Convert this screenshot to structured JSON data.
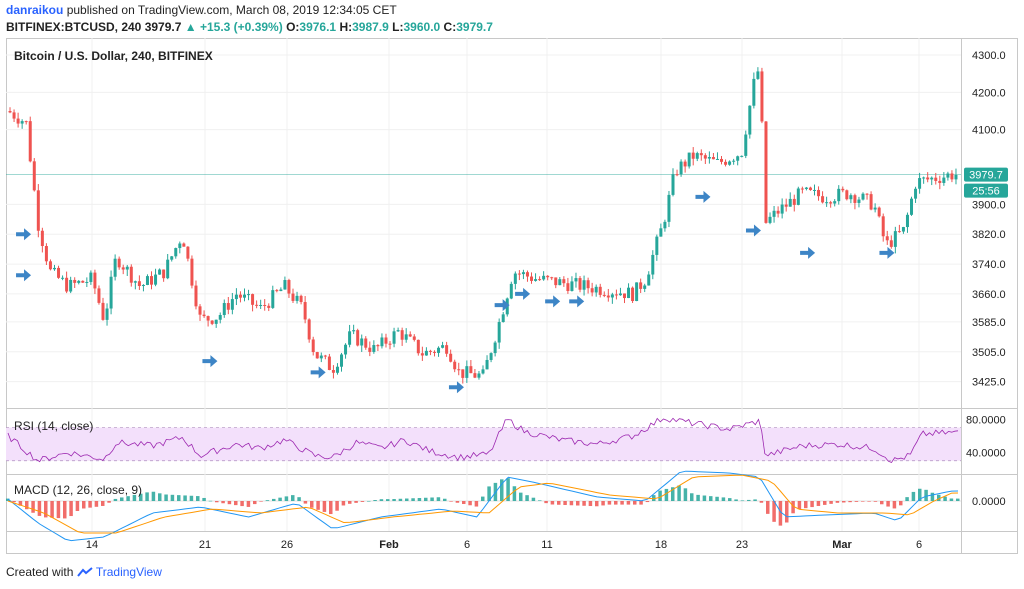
{
  "header": {
    "author": "danraikou",
    "published": "published on TradingView.com, March 08, 2019 12:34:05 CET",
    "symbol": "BITFINEX:BTCUSD, 240",
    "last": "3979.7",
    "change": "+15.3 (+0.39%)",
    "o_label": "O:",
    "o": "3976.1",
    "h_label": "H:",
    "h": "3987.9",
    "l_label": "L:",
    "l": "3960.0",
    "c_label": "C:",
    "c": "3979.7"
  },
  "panes": {
    "main_title": "Bitcoin / U.S. Dollar, 240, BITFINEX",
    "rsi_title": "RSI (14, close)",
    "macd_title": "MACD (12, 26, close, 9)"
  },
  "price_tag": "3979.7",
  "countdown": "25:56",
  "footer": {
    "created": "Created with",
    "brand": "TradingView"
  },
  "colors": {
    "up": "#26a69a",
    "down": "#ef5350",
    "arrow": "#3d85c6",
    "rsi": "#9c27b0",
    "rsi_band": "#f3e0fb",
    "macd": "#2196f3",
    "signal": "#ff9800",
    "last_line": "#26a69a"
  },
  "chart_data": [
    {
      "type": "candlestick",
      "title": "Bitcoin / U.S. Dollar, 240, BITFINEX",
      "y_ticks": [
        4300.0,
        4200.0,
        4100.0,
        3900.0,
        3820.0,
        3740.0,
        3660.0,
        3585.0,
        3505.0,
        3425.0
      ],
      "x_ticks": [
        "14",
        "21",
        "26",
        "Feb",
        "6",
        "11",
        "18",
        "23",
        "Mar",
        "6"
      ],
      "last_price": 3979.7,
      "price_path": [
        {
          "t": 0,
          "p": 4150
        },
        {
          "t": 1.5,
          "p": 4120
        },
        {
          "t": 2.5,
          "p": 3850
        },
        {
          "t": 3.5,
          "p": 3720
        },
        {
          "t": 5.0,
          "p": 3680
        },
        {
          "t": 7.0,
          "p": 3700
        },
        {
          "t": 8.0,
          "p": 3590
        },
        {
          "t": 9.0,
          "p": 3760
        },
        {
          "t": 11.0,
          "p": 3680
        },
        {
          "t": 13.0,
          "p": 3720
        },
        {
          "t": 14.5,
          "p": 3820
        },
        {
          "t": 16.0,
          "p": 3590
        },
        {
          "t": 17.5,
          "p": 3600
        },
        {
          "t": 19.0,
          "p": 3660
        },
        {
          "t": 21.0,
          "p": 3620
        },
        {
          "t": 23.0,
          "p": 3680
        },
        {
          "t": 24.5,
          "p": 3620
        },
        {
          "t": 25.5,
          "p": 3500
        },
        {
          "t": 27.0,
          "p": 3460
        },
        {
          "t": 28.5,
          "p": 3550
        },
        {
          "t": 30.5,
          "p": 3510
        },
        {
          "t": 32.5,
          "p": 3560
        },
        {
          "t": 34.5,
          "p": 3500
        },
        {
          "t": 36.5,
          "p": 3520
        },
        {
          "t": 37.5,
          "p": 3450
        },
        {
          "t": 39.5,
          "p": 3440
        },
        {
          "t": 41.0,
          "p": 3600
        },
        {
          "t": 42.0,
          "p": 3720
        },
        {
          "t": 44.0,
          "p": 3700
        },
        {
          "t": 46.0,
          "p": 3690
        },
        {
          "t": 48.0,
          "p": 3680
        },
        {
          "t": 50.0,
          "p": 3670
        },
        {
          "t": 52.0,
          "p": 3660
        },
        {
          "t": 53.0,
          "p": 3700
        },
        {
          "t": 54.5,
          "p": 3850
        },
        {
          "t": 55.5,
          "p": 3990
        },
        {
          "t": 57.0,
          "p": 4030
        },
        {
          "t": 59.0,
          "p": 4010
        },
        {
          "t": 61.0,
          "p": 4040
        },
        {
          "t": 62.0,
          "p": 4220
        },
        {
          "t": 62.5,
          "p": 4270
        },
        {
          "t": 63.0,
          "p": 3850
        },
        {
          "t": 64.0,
          "p": 3880
        },
        {
          "t": 66.0,
          "p": 3930
        },
        {
          "t": 68.0,
          "p": 3920
        },
        {
          "t": 70.0,
          "p": 3930
        },
        {
          "t": 72.0,
          "p": 3900
        },
        {
          "t": 73.0,
          "p": 3790
        },
        {
          "t": 74.5,
          "p": 3830
        },
        {
          "t": 75.5,
          "p": 3960
        },
        {
          "t": 78.5,
          "p": 3980
        }
      ],
      "annotations": "blue arrows marking signals"
    },
    {
      "type": "line",
      "title": "RSI (14, close)",
      "y_ticks": [
        80.0,
        40.0
      ],
      "band": [
        30,
        70
      ],
      "values_path": [
        {
          "t": 0,
          "v": 60
        },
        {
          "t": 2.5,
          "v": 30
        },
        {
          "t": 5,
          "v": 40
        },
        {
          "t": 8,
          "v": 32
        },
        {
          "t": 9,
          "v": 52
        },
        {
          "t": 12,
          "v": 48
        },
        {
          "t": 14.5,
          "v": 58
        },
        {
          "t": 16,
          "v": 36
        },
        {
          "t": 19,
          "v": 50
        },
        {
          "t": 21,
          "v": 45
        },
        {
          "t": 23,
          "v": 55
        },
        {
          "t": 25.5,
          "v": 36
        },
        {
          "t": 27,
          "v": 34
        },
        {
          "t": 29,
          "v": 52
        },
        {
          "t": 31,
          "v": 45
        },
        {
          "t": 33,
          "v": 55
        },
        {
          "t": 35,
          "v": 42
        },
        {
          "t": 37.5,
          "v": 34
        },
        {
          "t": 40,
          "v": 38
        },
        {
          "t": 41.5,
          "v": 80
        },
        {
          "t": 43,
          "v": 65
        },
        {
          "t": 46,
          "v": 55
        },
        {
          "t": 49,
          "v": 50
        },
        {
          "t": 52,
          "v": 60
        },
        {
          "t": 54.5,
          "v": 82
        },
        {
          "t": 57,
          "v": 75
        },
        {
          "t": 60,
          "v": 68
        },
        {
          "t": 62.5,
          "v": 78
        },
        {
          "t": 63,
          "v": 36
        },
        {
          "t": 66,
          "v": 48
        },
        {
          "t": 69,
          "v": 50
        },
        {
          "t": 72,
          "v": 45
        },
        {
          "t": 73.5,
          "v": 30
        },
        {
          "t": 75,
          "v": 36
        },
        {
          "t": 76,
          "v": 62
        },
        {
          "t": 78.5,
          "v": 64
        }
      ]
    },
    {
      "type": "line",
      "title": "MACD (12, 26, close, 9)",
      "y_ticks": [
        0.0
      ],
      "series_paths": {
        "macd": [
          {
            "t": 0,
            "v": 5
          },
          {
            "t": 2.5,
            "v": -55
          },
          {
            "t": 5,
            "v": -100
          },
          {
            "t": 8,
            "v": -90
          },
          {
            "t": 12,
            "v": -30
          },
          {
            "t": 16,
            "v": -15
          },
          {
            "t": 20,
            "v": -40
          },
          {
            "t": 24,
            "v": -5
          },
          {
            "t": 27,
            "v": -70
          },
          {
            "t": 31,
            "v": -40
          },
          {
            "t": 36,
            "v": -20
          },
          {
            "t": 39,
            "v": -40
          },
          {
            "t": 41.5,
            "v": 60
          },
          {
            "t": 44,
            "v": 45
          },
          {
            "t": 49,
            "v": 10
          },
          {
            "t": 53,
            "v": 0
          },
          {
            "t": 56,
            "v": 75
          },
          {
            "t": 60,
            "v": 70
          },
          {
            "t": 62.5,
            "v": 60
          },
          {
            "t": 64.5,
            "v": -40
          },
          {
            "t": 68,
            "v": -35
          },
          {
            "t": 72,
            "v": -30
          },
          {
            "t": 74,
            "v": -50
          },
          {
            "t": 76,
            "v": 10
          },
          {
            "t": 78.5,
            "v": 25
          }
        ],
        "signal": [
          {
            "t": 0,
            "v": 0
          },
          {
            "t": 3,
            "v": -30
          },
          {
            "t": 6,
            "v": -80
          },
          {
            "t": 9,
            "v": -80
          },
          {
            "t": 13,
            "v": -40
          },
          {
            "t": 17,
            "v": -20
          },
          {
            "t": 21,
            "v": -30
          },
          {
            "t": 25,
            "v": -15
          },
          {
            "t": 28,
            "v": -55
          },
          {
            "t": 32,
            "v": -40
          },
          {
            "t": 37,
            "v": -25
          },
          {
            "t": 40,
            "v": -30
          },
          {
            "t": 42.5,
            "v": 35
          },
          {
            "t": 45,
            "v": 45
          },
          {
            "t": 50,
            "v": 15
          },
          {
            "t": 54,
            "v": 5
          },
          {
            "t": 57,
            "v": 60
          },
          {
            "t": 61,
            "v": 65
          },
          {
            "t": 63.5,
            "v": 50
          },
          {
            "t": 65.5,
            "v": -20
          },
          {
            "t": 69,
            "v": -30
          },
          {
            "t": 73,
            "v": -30
          },
          {
            "t": 75,
            "v": -35
          },
          {
            "t": 77,
            "v": 0
          },
          {
            "t": 78.5,
            "v": 20
          }
        ]
      }
    }
  ]
}
